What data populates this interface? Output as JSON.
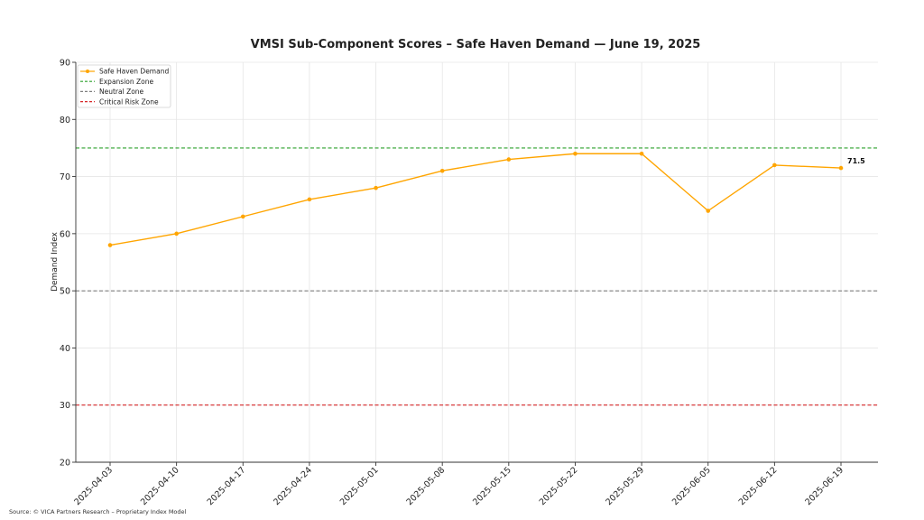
{
  "chart_data": {
    "type": "line",
    "title": "VMSI Sub-Component Scores – Safe Haven Demand — June 19, 2025",
    "xlabel": "",
    "ylabel": "Demand Index",
    "ylim": [
      20,
      90
    ],
    "yticks": [
      20,
      30,
      40,
      50,
      60,
      70,
      80,
      90
    ],
    "grid": true,
    "legend_position": "top-left",
    "categories": [
      "2025-04-03",
      "2025-04-10",
      "2025-04-17",
      "2025-04-24",
      "2025-05-01",
      "2025-05-08",
      "2025-05-15",
      "2025-05-22",
      "2025-05-29",
      "2025-06-05",
      "2025-06-12",
      "2025-06-19"
    ],
    "series": [
      {
        "name": "Safe Haven Demand",
        "color": "#FFA500",
        "values": [
          58,
          60,
          63,
          66,
          68,
          71,
          73,
          74,
          74,
          64,
          72,
          71.5
        ]
      }
    ],
    "reference_lines": [
      {
        "name": "Expansion Zone",
        "value": 75,
        "color": "#2CA02C"
      },
      {
        "name": "Neutral Zone",
        "value": 50,
        "color": "#7F7F7F"
      },
      {
        "name": "Critical Risk Zone",
        "value": 30,
        "color": "#D62728"
      }
    ],
    "annotation": {
      "text": "71.5",
      "category": "2025-06-19",
      "value": 71.5
    }
  },
  "source_note": "Source: © VICA Partners Research – Proprietary Index Model"
}
